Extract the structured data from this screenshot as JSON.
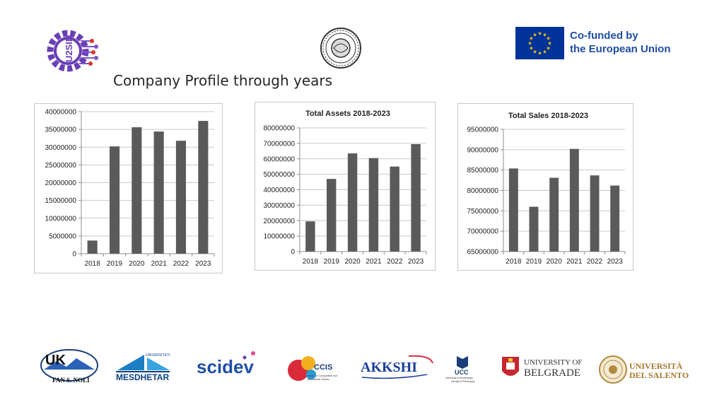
{
  "header": {
    "eu_line1": "Co-funded by",
    "eu_line2": "the European Union",
    "page_title": "Company Profile through years",
    "eu_color": "#003399",
    "eu_star_color": "#ffcc00"
  },
  "chart_data": [
    {
      "type": "bar",
      "title": "",
      "categories": [
        "2018",
        "2019",
        "2020",
        "2021",
        "2022",
        "2023"
      ],
      "values": [
        3700000,
        30200000,
        35600000,
        34400000,
        31800000,
        37400000
      ],
      "yticks": [
        "40000000",
        "35000000",
        "30000000",
        "25000000",
        "20000000",
        "15000000",
        "10000000",
        "5000000",
        "0"
      ],
      "ylim": [
        0,
        40000000
      ],
      "xlabel": "",
      "ylabel": "",
      "grid": true,
      "legend": "none",
      "bar_color": "#5a5a5a"
    },
    {
      "type": "bar",
      "title": "Total Assets 2018-2023",
      "categories": [
        "2018",
        "2019",
        "2020",
        "2021",
        "2022",
        "2023"
      ],
      "values": [
        19500000,
        47000000,
        63500000,
        60500000,
        55000000,
        69500000
      ],
      "yticks": [
        "80000000",
        "70000000",
        "60000000",
        "50000000",
        "40000000",
        "30000000",
        "20000000",
        "10000000",
        "0"
      ],
      "ylim": [
        0,
        80000000
      ],
      "xlabel": "",
      "ylabel": "",
      "grid": true,
      "legend": "none",
      "bar_color": "#5a5a5a"
    },
    {
      "type": "bar",
      "title": "Total Sales 2018-2023",
      "categories": [
        "2018",
        "2019",
        "2020",
        "2021",
        "2022",
        "2023"
      ],
      "values": [
        85400000,
        76000000,
        83100000,
        90200000,
        83700000,
        81200000
      ],
      "yticks": [
        "95000000",
        "90000000",
        "85000000",
        "80000000",
        "75000000",
        "70000000",
        "65000000"
      ],
      "ylim": [
        65000000,
        95000000
      ],
      "xlabel": "",
      "ylabel": "",
      "grid": true,
      "legend": "none",
      "bar_color": "#5a5a5a"
    }
  ],
  "footer": {
    "fan_noli": {
      "mark": "UK",
      "text": "FAN S. NOLI"
    },
    "mesdhetar": {
      "top": "UNIVERSITETI",
      "text": "MESDHETAR"
    },
    "scidev": {
      "text": "scidev"
    },
    "ccis": {
      "text": "CCIS",
      "sub": "Centre for Comparative and International Studies"
    },
    "akkshi": {
      "text": "AKKSHI"
    },
    "ucc": {
      "text": "UCC",
      "sub1": "University of Montenegro",
      "sub2": "Faculty of Philosophy"
    },
    "belgrade": {
      "line1": "UNIVERSITY OF",
      "line2": "BELGRADE"
    },
    "salento": {
      "line1": "UNIVERSITÀ",
      "line2": "DEL SALENTO"
    }
  }
}
